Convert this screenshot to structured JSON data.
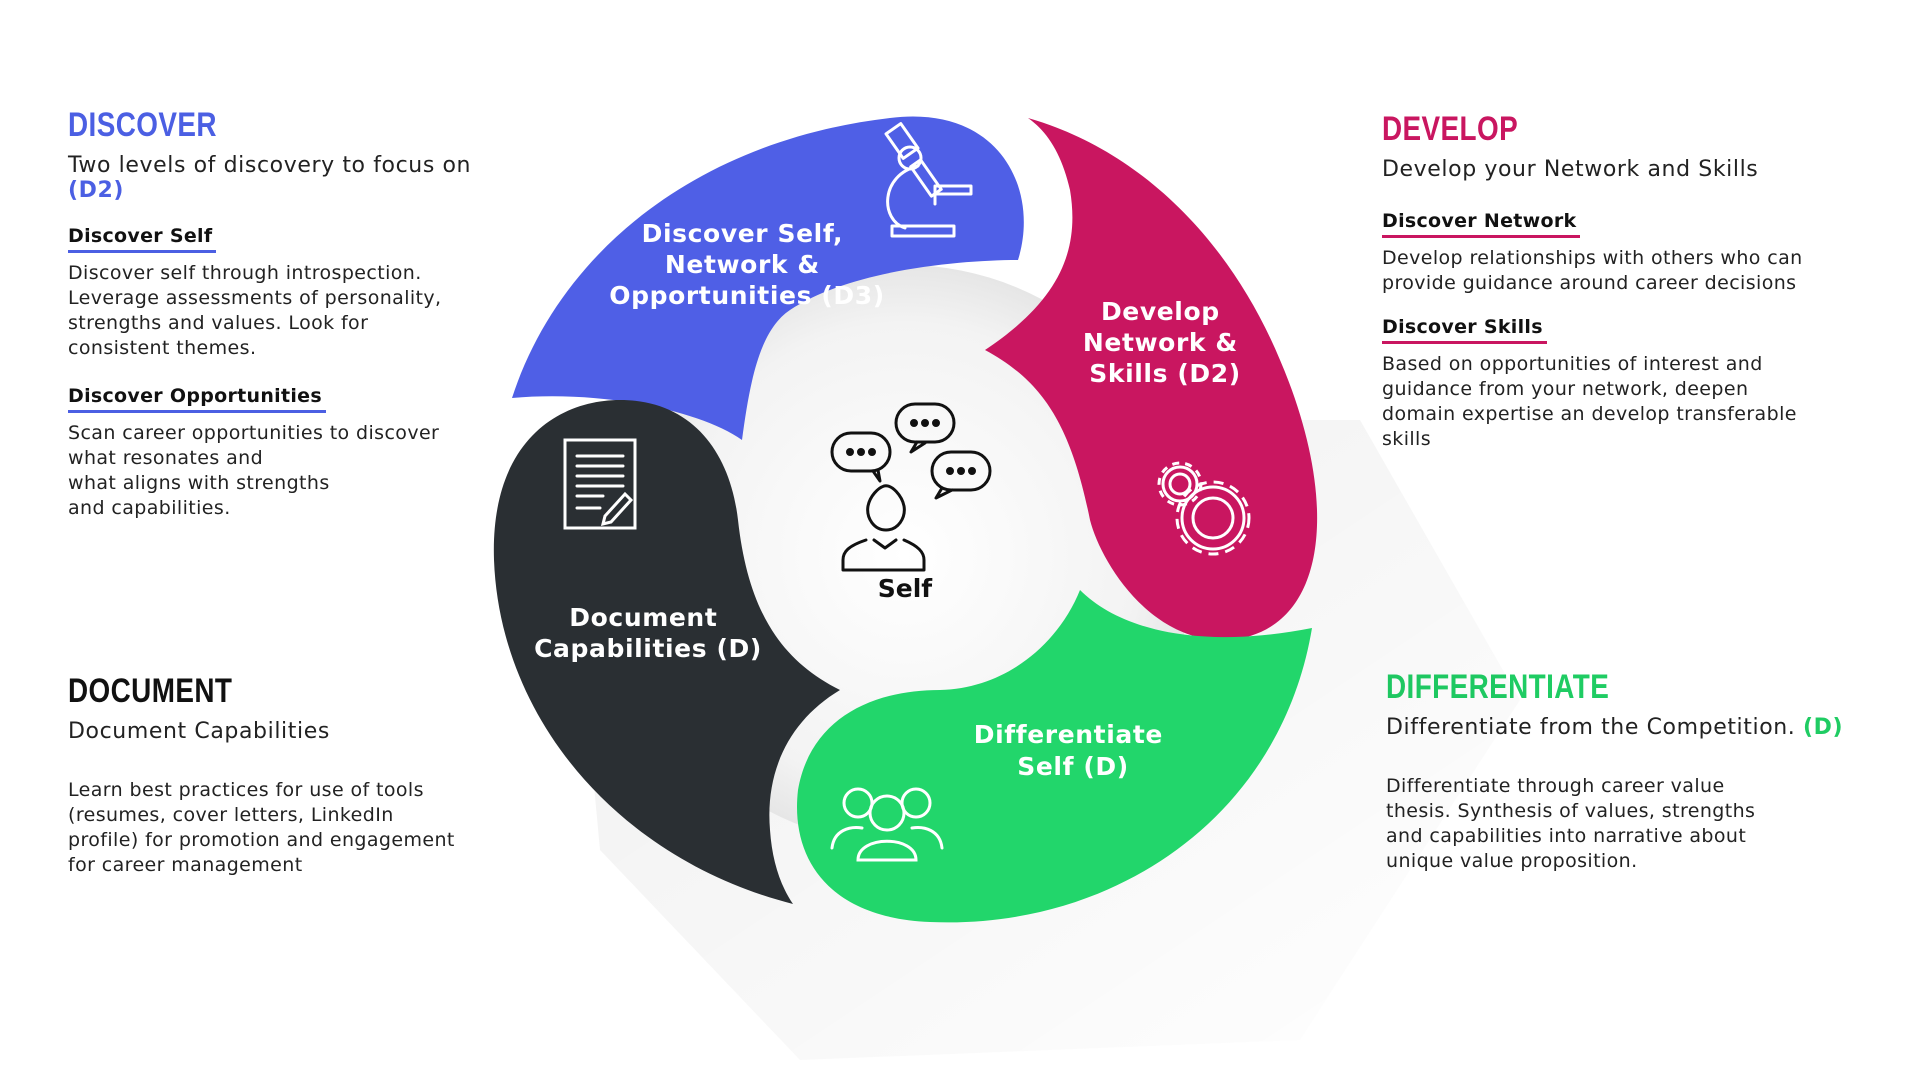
{
  "discover": {
    "title": "DISCOVER",
    "subtitle_text": "Two levels of discovery to focus on",
    "subtitle_tag": "(D2)",
    "items": [
      {
        "heading": "Discover Self",
        "lines": [
          "Discover self through introspection.",
          "Leverage assessments of personality,",
          "strengths and values. Look for",
          "consistent themes."
        ]
      },
      {
        "heading": "Discover Opportunities",
        "lines": [
          "Scan career opportunities to discover",
          "what resonates and",
          "what aligns with strengths",
          "and capabilities."
        ]
      }
    ]
  },
  "develop": {
    "title": "DEVELOP",
    "subtitle_text": "Develop your Network and Skills",
    "items": [
      {
        "heading": "Discover Network",
        "lines": [
          "Develop relationships with others who can",
          "provide guidance around career decisions"
        ]
      },
      {
        "heading": "Discover Skills",
        "lines": [
          "Based on opportunities of interest and",
          "guidance  from your network, deepen",
          "domain expertise an develop transferable",
          "skills"
        ]
      }
    ]
  },
  "document": {
    "title": "DOCUMENT",
    "subtitle_text": "Document Capabilities",
    "lines": [
      "Learn best practices for use of tools",
      "(resumes, cover letters, LinkedIn",
      "profile) for promotion and engagement",
      "for career management"
    ]
  },
  "differentiate": {
    "title": "DIFFERENTIATE",
    "subtitle_text": "Differentiate from the Competition.",
    "subtitle_tag": "(D)",
    "lines": [
      "Differentiate through career value",
      "thesis. Synthesis of values, strengths",
      "and capabilities into narrative about",
      "unique value proposition."
    ]
  },
  "cycle": {
    "center_label": "Self",
    "center_icon": "person-chat-icon",
    "segments": [
      {
        "lines": [
          "Discover Self,",
          "Network &",
          "Opportunities (D3)"
        ],
        "color": "#4f5fe6",
        "icon": "microscope-icon"
      },
      {
        "lines": [
          "Develop",
          "Network &",
          "Skills (D2)"
        ],
        "color": "#c91660",
        "icon": "gears-icon"
      },
      {
        "lines": [
          "Differentiate",
          "Self (D)"
        ],
        "color": "#22d66b",
        "icon": "group-icon"
      },
      {
        "lines": [
          "Document",
          "Capabilities (D)"
        ],
        "color": "#2a2f33",
        "icon": "document-edit-icon"
      }
    ]
  }
}
